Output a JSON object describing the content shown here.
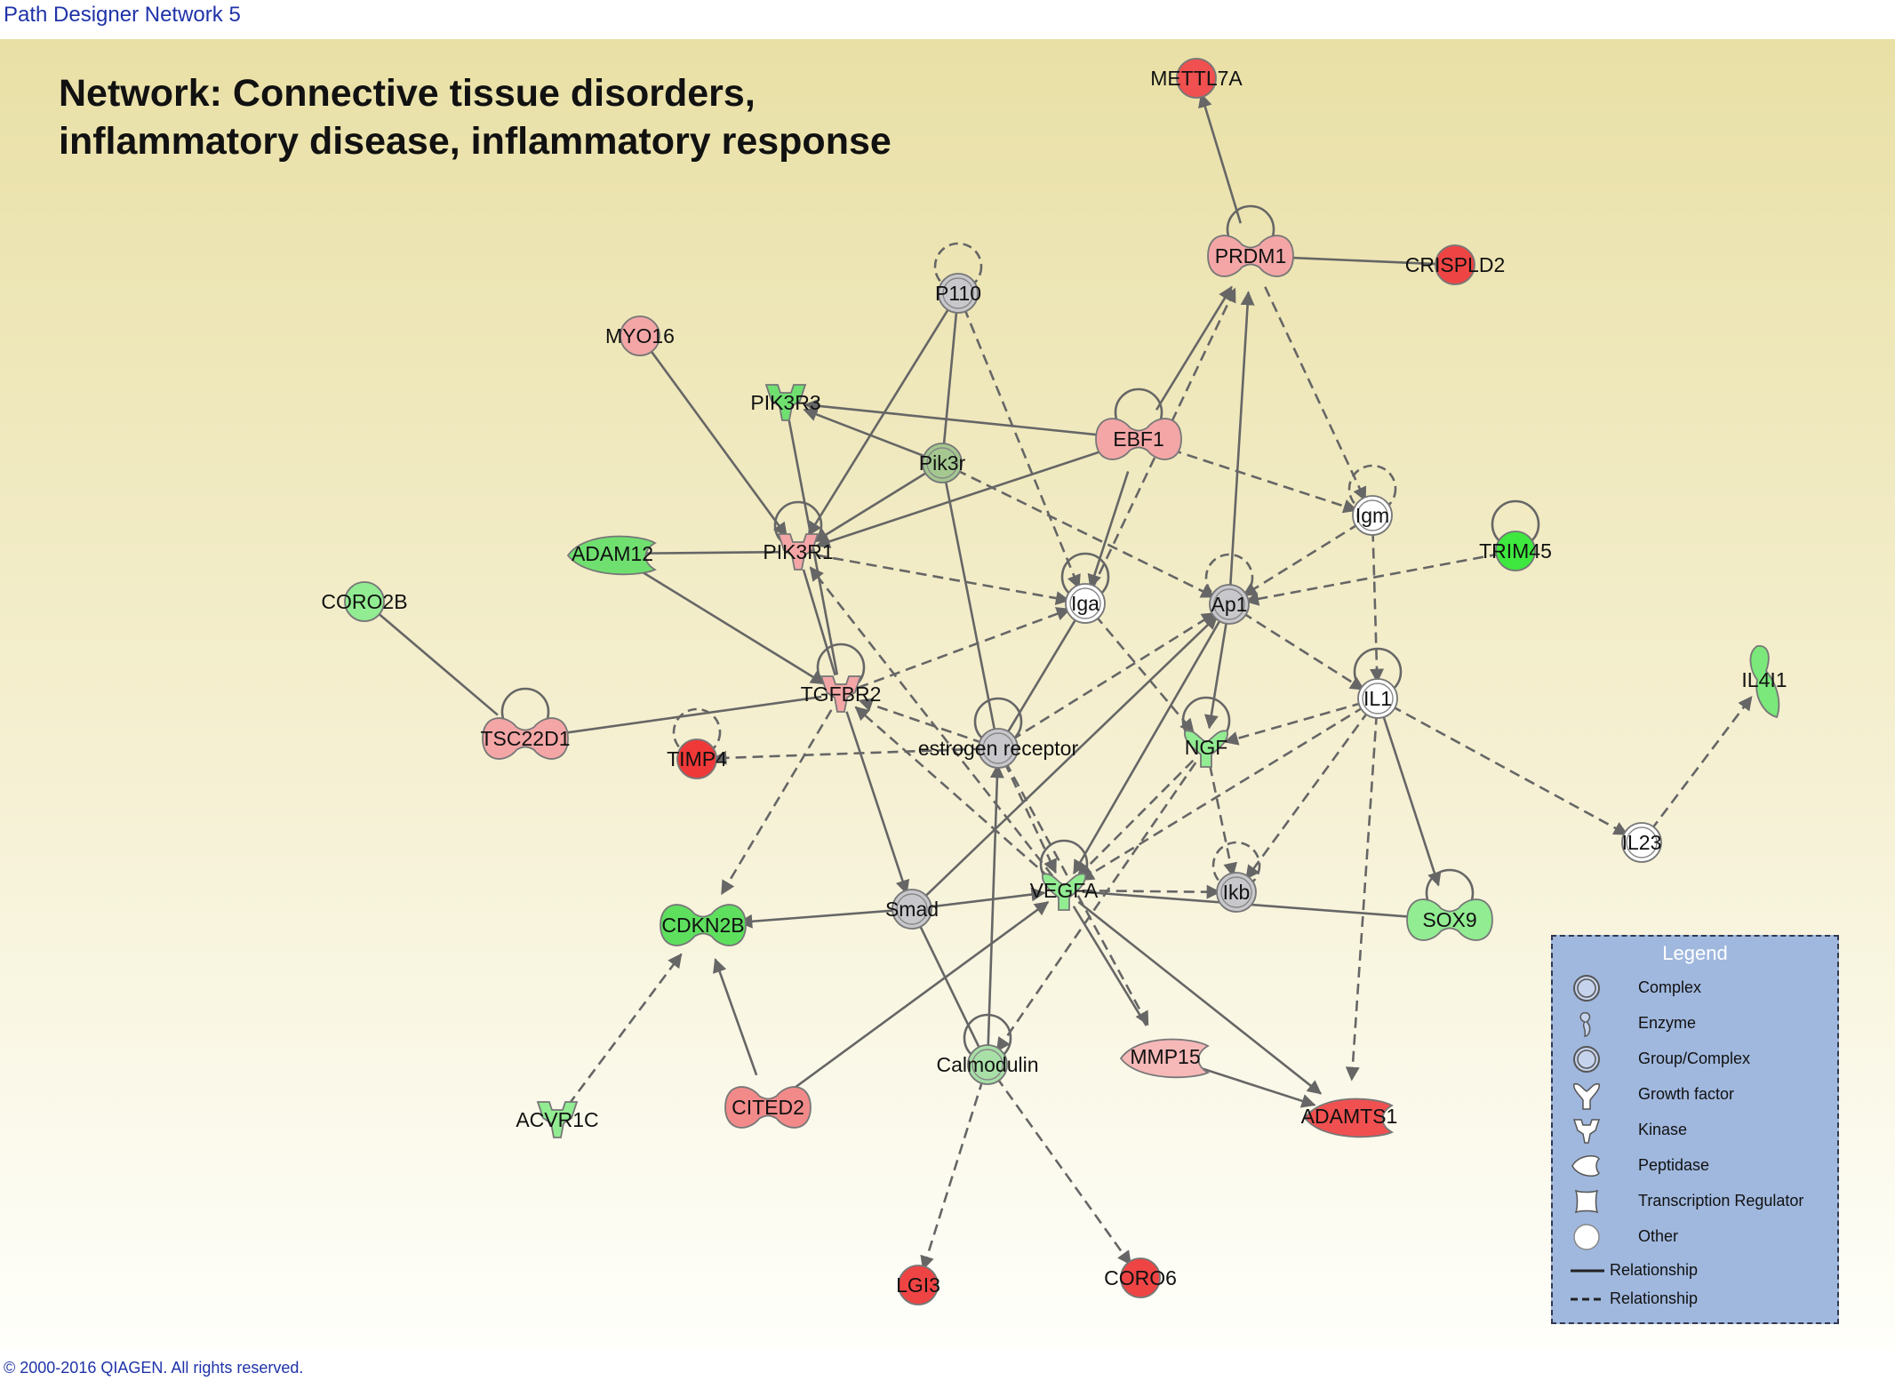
{
  "window": {
    "title": "Path Designer Network 5"
  },
  "network_title": {
    "line1": "Network: Connective tissue disorders,",
    "line2": "inflammatory disease, inflammatory response"
  },
  "colors": {
    "red": "#f05050",
    "light_red": "#f4a6a6",
    "pink": "#f7b8b8",
    "green": "#52e052",
    "light_green": "#92ec92",
    "gray": "#c8c8cc",
    "white": "#ffffff",
    "edge": "#666666",
    "legend_bg": "#a0b8de"
  },
  "nodes": [
    {
      "id": "METTL7A",
      "label": "METTL7A",
      "shape": "circle",
      "color": "#f05050"
    },
    {
      "id": "PRDM1",
      "label": "PRDM1",
      "shape": "transcription-regulator",
      "color": "#f4a6a6"
    },
    {
      "id": "CRISPLD2",
      "label": "CRISPLD2",
      "shape": "circle",
      "color": "#ef4444"
    },
    {
      "id": "P110",
      "label": "P110",
      "shape": "complex",
      "color": "#c8c8cc"
    },
    {
      "id": "MYO16",
      "label": "MYO16",
      "shape": "circle",
      "color": "#f4a6a6"
    },
    {
      "id": "PIK3R3",
      "label": "PIK3R3",
      "shape": "kinase",
      "color": "#6fe06f"
    },
    {
      "id": "EBF1",
      "label": "EBF1",
      "shape": "transcription-regulator",
      "color": "#f4a6a6"
    },
    {
      "id": "Pik3r",
      "label": "Pik3r",
      "shape": "complex",
      "color": "#a4c890"
    },
    {
      "id": "Igm",
      "label": "Igm",
      "shape": "complex",
      "color": "#ffffff"
    },
    {
      "id": "TRIM45",
      "label": "TRIM45",
      "shape": "circle",
      "color": "#3ee83e"
    },
    {
      "id": "ADAM12",
      "label": "ADAM12",
      "shape": "peptidase",
      "color": "#6fe06f"
    },
    {
      "id": "PIK3R1",
      "label": "PIK3R1",
      "shape": "kinase",
      "color": "#f4a6a6"
    },
    {
      "id": "CORO2B",
      "label": "CORO2B",
      "shape": "circle",
      "color": "#92ec92"
    },
    {
      "id": "Iga",
      "label": "Iga",
      "shape": "complex",
      "color": "#ffffff"
    },
    {
      "id": "Ap1",
      "label": "Ap1",
      "shape": "complex",
      "color": "#c8c8cc"
    },
    {
      "id": "IL4I1",
      "label": "IL4I1",
      "shape": "enzyme",
      "color": "#7ae87a"
    },
    {
      "id": "TGFBR2",
      "label": "TGFBR2",
      "shape": "kinase",
      "color": "#f4a6a6"
    },
    {
      "id": "IL1",
      "label": "IL1",
      "shape": "complex",
      "color": "#ffffff"
    },
    {
      "id": "TSC22D1",
      "label": "TSC22D1",
      "shape": "transcription-regulator",
      "color": "#f4a6a6"
    },
    {
      "id": "TIMP4",
      "label": "TIMP4",
      "shape": "circle",
      "color": "#ef3838"
    },
    {
      "id": "estrogen_receptor",
      "label": "estrogen receptor",
      "shape": "complex",
      "color": "#c8c8cc"
    },
    {
      "id": "NGF",
      "label": "NGF",
      "shape": "growth-factor",
      "color": "#92ec92"
    },
    {
      "id": "IL23",
      "label": "IL23",
      "shape": "complex",
      "color": "#ffffff"
    },
    {
      "id": "VEGFA",
      "label": "VEGFA",
      "shape": "growth-factor",
      "color": "#92ec92"
    },
    {
      "id": "Smad",
      "label": "Smad",
      "shape": "complex",
      "color": "#c8c8cc"
    },
    {
      "id": "Ikb",
      "label": "Ikb",
      "shape": "complex",
      "color": "#c8c8cc"
    },
    {
      "id": "CDKN2B",
      "label": "CDKN2B",
      "shape": "transcription-regulator",
      "color": "#5ee05e"
    },
    {
      "id": "SOX9",
      "label": "SOX9",
      "shape": "transcription-regulator",
      "color": "#92ec92"
    },
    {
      "id": "Calmodulin",
      "label": "Calmodulin",
      "shape": "complex",
      "color": "#a8e0a8"
    },
    {
      "id": "MMP15",
      "label": "MMP15",
      "shape": "peptidase",
      "color": "#f7b8b8"
    },
    {
      "id": "ADAMTS1",
      "label": "ADAMTS1",
      "shape": "peptidase",
      "color": "#f05050"
    },
    {
      "id": "ACVR1C",
      "label": "ACVR1C",
      "shape": "kinase",
      "color": "#92ec92"
    },
    {
      "id": "CITED2",
      "label": "CITED2",
      "shape": "transcription-regulator",
      "color": "#f28a8a"
    },
    {
      "id": "LGI3",
      "label": "LGI3",
      "shape": "circle",
      "color": "#ef4444"
    },
    {
      "id": "CORO6",
      "label": "CORO6",
      "shape": "circle",
      "color": "#ef4444"
    }
  ],
  "edges": [
    {
      "from": "PRDM1",
      "to": "METTL7A",
      "type": "solid",
      "arrow": true
    },
    {
      "from": "PRDM1",
      "to": "CRISPLD2",
      "type": "solid",
      "arrow": false
    },
    {
      "from": "PRDM1",
      "to": "Igm",
      "type": "dashed",
      "arrow": true
    },
    {
      "from": "EBF1",
      "to": "PRDM1",
      "type": "solid",
      "arrow": true
    },
    {
      "from": "Iga",
      "to": "PRDM1",
      "type": "dashed",
      "arrow": true
    },
    {
      "from": "Ap1",
      "to": "PRDM1",
      "type": "solid",
      "arrow": true
    },
    {
      "from": "P110",
      "to": "Iga",
      "type": "dashed",
      "arrow": true
    },
    {
      "from": "P110",
      "to": "PIK3R1",
      "type": "solid",
      "arrow": true
    },
    {
      "from": "P110",
      "to": "Pik3r",
      "type": "solid",
      "arrow": false
    },
    {
      "from": "MYO16",
      "to": "PIK3R1",
      "type": "solid",
      "arrow": true
    },
    {
      "from": "EBF1",
      "to": "PIK3R3",
      "type": "solid",
      "arrow": true
    },
    {
      "from": "Pik3r",
      "to": "PIK3R3",
      "type": "solid",
      "arrow": true
    },
    {
      "from": "PIK3R3",
      "to": "TGFBR2",
      "type": "solid",
      "arrow": false
    },
    {
      "from": "Pik3r",
      "to": "PIK3R1",
      "type": "solid",
      "arrow": true
    },
    {
      "from": "EBF1",
      "to": "PIK3R1",
      "type": "solid",
      "arrow": true
    },
    {
      "from": "EBF1",
      "to": "Iga",
      "type": "solid",
      "arrow": true
    },
    {
      "from": "EBF1",
      "to": "Igm",
      "type": "dashed",
      "arrow": true
    },
    {
      "from": "Pik3r",
      "to": "Ap1",
      "type": "dashed",
      "arrow": true
    },
    {
      "from": "Pik3r",
      "to": "estrogen_receptor",
      "type": "solid",
      "arrow": false
    },
    {
      "from": "ADAM12",
      "to": "PIK3R1",
      "type": "solid",
      "arrow": false
    },
    {
      "from": "ADAM12",
      "to": "TGFBR2",
      "type": "solid",
      "arrow": true
    },
    {
      "from": "PIK3R1",
      "to": "Iga",
      "type": "dashed",
      "arrow": true
    },
    {
      "from": "PIK3R1",
      "to": "TGFBR2",
      "type": "solid",
      "arrow": false
    },
    {
      "from": "CORO2B",
      "to": "TSC22D1",
      "type": "solid",
      "arrow": false
    },
    {
      "from": "TSC22D1",
      "to": "TGFBR2",
      "type": "solid",
      "arrow": false
    },
    {
      "from": "TGFBR2",
      "to": "Iga",
      "type": "dashed",
      "arrow": true
    },
    {
      "from": "TGFBR2",
      "to": "Smad",
      "type": "solid",
      "arrow": true
    },
    {
      "from": "TGFBR2",
      "to": "CDKN2B",
      "type": "dashed",
      "arrow": true
    },
    {
      "from": "estrogen_receptor",
      "to": "TIMP4",
      "type": "dashed",
      "arrow": true
    },
    {
      "from": "estrogen_receptor",
      "to": "TGFBR2",
      "type": "dashed",
      "arrow": true
    },
    {
      "from": "estrogen_receptor",
      "to": "Ap1",
      "type": "dashed",
      "arrow": true
    },
    {
      "from": "estrogen_receptor",
      "to": "Iga",
      "type": "solid",
      "arrow": false
    },
    {
      "from": "estrogen_receptor",
      "to": "VEGFA",
      "type": "dashed",
      "arrow": true
    },
    {
      "from": "estrogen_receptor",
      "to": "MMP15",
      "type": "dashed",
      "arrow": true
    },
    {
      "from": "Igm",
      "to": "Ap1",
      "type": "dashed",
      "arrow": true
    },
    {
      "from": "Igm",
      "to": "IL1",
      "type": "dashed",
      "arrow": true
    },
    {
      "from": "TRIM45",
      "to": "Ap1",
      "type": "dashed",
      "arrow": true
    },
    {
      "from": "Ap1",
      "to": "IL1",
      "type": "dashed",
      "arrow": true
    },
    {
      "from": "Ap1",
      "to": "NGF",
      "type": "solid",
      "arrow": true
    },
    {
      "from": "Ap1",
      "to": "VEGFA",
      "type": "solid",
      "arrow": true
    },
    {
      "from": "Smad",
      "to": "Ap1",
      "type": "solid",
      "arrow": true
    },
    {
      "from": "Iga",
      "to": "NGF",
      "type": "dashed",
      "arrow": true
    },
    {
      "from": "IL1",
      "to": "NGF",
      "type": "dashed",
      "arrow": true
    },
    {
      "from": "IL1",
      "to": "VEGFA",
      "type": "dashed",
      "arrow": true
    },
    {
      "from": "IL1",
      "to": "Ikb",
      "type": "dashed",
      "arrow": true
    },
    {
      "from": "IL1",
      "to": "SOX9",
      "type": "solid",
      "arrow": true
    },
    {
      "from": "IL1",
      "to": "ADAMTS1",
      "type": "dashed",
      "arrow": true
    },
    {
      "from": "IL1",
      "to": "IL23",
      "type": "dashed",
      "arrow": true
    },
    {
      "from": "IL23",
      "to": "IL4I1",
      "type": "dashed",
      "arrow": true
    },
    {
      "from": "NGF",
      "to": "VEGFA",
      "type": "dashed",
      "arrow": true
    },
    {
      "from": "NGF",
      "to": "Ikb",
      "type": "dashed",
      "arrow": true
    },
    {
      "from": "NGF",
      "to": "Calmodulin",
      "type": "dashed",
      "arrow": true
    },
    {
      "from": "VEGFA",
      "to": "Ikb",
      "type": "dashed",
      "arrow": true
    },
    {
      "from": "VEGFA",
      "to": "SOX9",
      "type": "solid",
      "arrow": false
    },
    {
      "from": "VEGFA",
      "to": "PIK3R1",
      "type": "dashed",
      "arrow": true
    },
    {
      "from": "VEGFA",
      "to": "TGFBR2",
      "type": "dashed",
      "arrow": true
    },
    {
      "from": "VEGFA",
      "to": "ADAMTS1",
      "type": "solid",
      "arrow": true
    },
    {
      "from": "Smad",
      "to": "VEGFA",
      "type": "solid",
      "arrow": true
    },
    {
      "from": "Smad",
      "to": "CDKN2B",
      "type": "solid",
      "arrow": true
    },
    {
      "from": "Smad",
      "to": "Calmodulin",
      "type": "solid",
      "arrow": false
    },
    {
      "from": "Calmodulin",
      "to": "estrogen_receptor",
      "type": "solid",
      "arrow": true
    },
    {
      "from": "Calmodulin",
      "to": "LGI3",
      "type": "dashed",
      "arrow": true
    },
    {
      "from": "Calmodulin",
      "to": "CORO6",
      "type": "dashed",
      "arrow": true
    },
    {
      "from": "CITED2",
      "to": "CDKN2B",
      "type": "solid",
      "arrow": true
    },
    {
      "from": "CITED2",
      "to": "VEGFA",
      "type": "solid",
      "arrow": true
    },
    {
      "from": "ACVR1C",
      "to": "CDKN2B",
      "type": "dashed",
      "arrow": true
    },
    {
      "from": "MMP15",
      "to": "ADAMTS1",
      "type": "solid",
      "arrow": true
    },
    {
      "from": "VEGFA",
      "to": "MMP15",
      "type": "solid",
      "arrow": false
    }
  ],
  "self_loops": [
    {
      "node": "P110",
      "type": "dashed"
    },
    {
      "node": "PRDM1",
      "type": "solid"
    },
    {
      "node": "EBF1",
      "type": "solid"
    },
    {
      "node": "Igm",
      "type": "dashed"
    },
    {
      "node": "TRIM45",
      "type": "solid"
    },
    {
      "node": "PIK3R1",
      "type": "solid"
    },
    {
      "node": "Iga",
      "type": "solid"
    },
    {
      "node": "Ap1",
      "type": "dashed"
    },
    {
      "node": "TGFBR2",
      "type": "solid"
    },
    {
      "node": "IL1",
      "type": "solid"
    },
    {
      "node": "TSC22D1",
      "type": "solid"
    },
    {
      "node": "TIMP4",
      "type": "dashed"
    },
    {
      "node": "estrogen_receptor",
      "type": "solid"
    },
    {
      "node": "NGF",
      "type": "solid"
    },
    {
      "node": "VEGFA",
      "type": "solid"
    },
    {
      "node": "Ikb",
      "type": "dashed"
    },
    {
      "node": "SOX9",
      "type": "solid"
    },
    {
      "node": "Calmodulin",
      "type": "solid"
    }
  ],
  "legend": {
    "title": "Legend",
    "items": [
      {
        "label": "Complex",
        "icon": "complex-icon"
      },
      {
        "label": "Enzyme",
        "icon": "enzyme-icon"
      },
      {
        "label": "Group/Complex",
        "icon": "group-complex-icon"
      },
      {
        "label": "Growth factor",
        "icon": "growth-factor-icon"
      },
      {
        "label": "Kinase",
        "icon": "kinase-icon"
      },
      {
        "label": "Peptidase",
        "icon": "peptidase-icon"
      },
      {
        "label": "Transcription Regulator",
        "icon": "transcription-regulator-icon"
      },
      {
        "label": "Other",
        "icon": "other-icon"
      },
      {
        "label": "Relationship",
        "icon": "solid-relationship-icon"
      },
      {
        "label": "Relationship",
        "icon": "dashed-relationship-icon"
      }
    ]
  },
  "footer": {
    "copyright": "© 2000-2016 QIAGEN. All rights reserved."
  }
}
